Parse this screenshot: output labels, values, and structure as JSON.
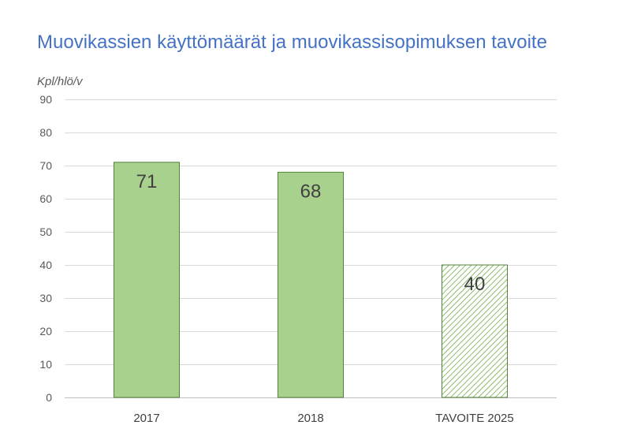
{
  "chart_data": {
    "type": "bar",
    "title": "Muovikassien käyttömäärät ja muovikassisopimuksen tavoite",
    "ylabel": "Kpl/hlö/v",
    "xlabel": "",
    "categories": [
      "2017",
      "2018",
      "TAVOITE 2025"
    ],
    "values": [
      71,
      68,
      40
    ],
    "data_labels": [
      "71",
      "68",
      "40"
    ],
    "styles": [
      "solid",
      "solid",
      "hatched"
    ],
    "ylim": [
      0,
      90
    ],
    "y_ticks": [
      0,
      10,
      20,
      30,
      40,
      50,
      60,
      70,
      80,
      90
    ],
    "y_tick_labels": [
      "0",
      "10",
      "20",
      "30",
      "40",
      "50",
      "60",
      "70",
      "80",
      "90"
    ],
    "grid": true,
    "legend": "none",
    "colors": {
      "bar_fill": "#a9d18e",
      "bar_edge": "#548235",
      "hatch": "#70ad47",
      "grid": "#d9d9d9",
      "title": "#4472c4"
    }
  }
}
